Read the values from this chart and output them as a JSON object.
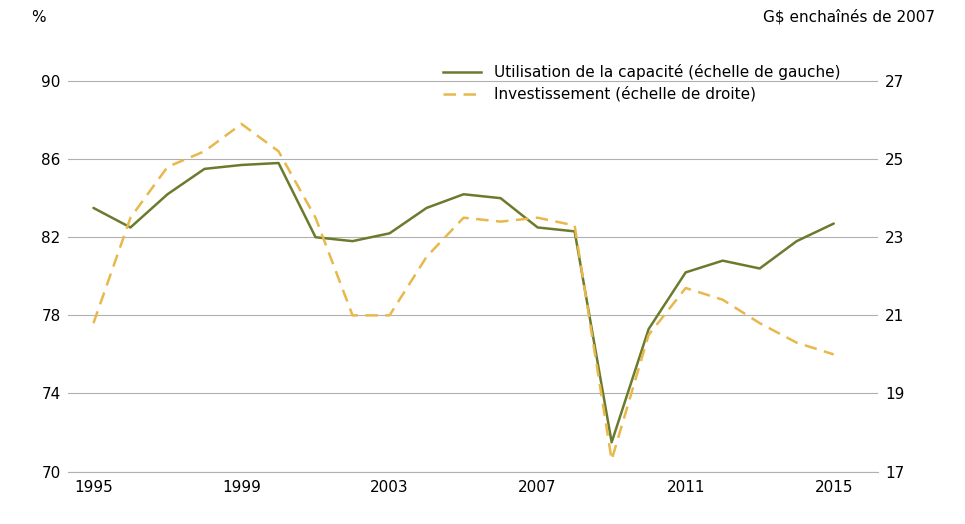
{
  "title_left": "%",
  "title_right": "G$ enchaînés de 2007",
  "legend_line1": "Utilisation de la capacité (échelle de gauche)",
  "legend_line2": "Investissement (échelle de droite)",
  "left_ylim": [
    70,
    92
  ],
  "right_ylim": [
    17,
    28
  ],
  "left_yticks": [
    70,
    74,
    78,
    82,
    86,
    90
  ],
  "right_yticks": [
    17,
    19,
    21,
    23,
    25,
    27
  ],
  "xlim": [
    1994.3,
    2016.2
  ],
  "xticks": [
    1995,
    1999,
    2003,
    2007,
    2011,
    2015
  ],
  "capacity_years": [
    1995,
    1996,
    1997,
    1998,
    1999,
    2000,
    2001,
    2002,
    2003,
    2004,
    2005,
    2006,
    2007,
    2008,
    2009,
    2010,
    2011,
    2012,
    2013,
    2014,
    2015
  ],
  "capacity_values": [
    83.5,
    82.5,
    84.2,
    85.5,
    85.7,
    85.8,
    82.0,
    81.8,
    82.2,
    83.5,
    84.2,
    84.0,
    82.5,
    82.3,
    71.5,
    77.3,
    80.2,
    80.8,
    80.4,
    81.8,
    82.7
  ],
  "investment_years": [
    1995,
    1996,
    1997,
    1998,
    1999,
    2000,
    2001,
    2002,
    2003,
    2004,
    2005,
    2006,
    2007,
    2008,
    2009,
    2010,
    2011,
    2012,
    2013,
    2014,
    2015
  ],
  "investment_values": [
    20.8,
    23.5,
    24.8,
    25.2,
    25.9,
    25.2,
    23.5,
    21.0,
    21.0,
    22.5,
    23.5,
    23.4,
    23.5,
    23.3,
    17.3,
    20.5,
    21.7,
    21.4,
    20.8,
    20.3,
    20.0
  ],
  "capacity_color": "#6b7b2e",
  "investment_color": "#e8b84b",
  "background_color": "#ffffff",
  "grid_color": "#b0b0b0",
  "fontsize": 11
}
